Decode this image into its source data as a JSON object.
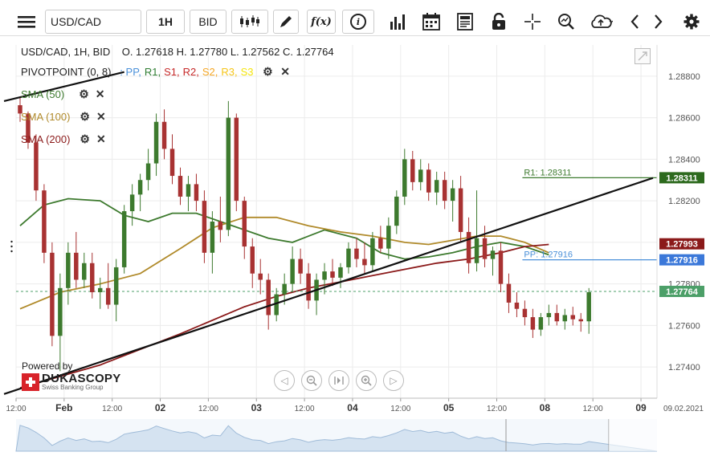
{
  "toolbar": {
    "instrument": "USD/CAD",
    "timeframe": "1H",
    "side": "BID",
    "fx_label": "f(x)",
    "info_label": "i"
  },
  "header": {
    "ohlc_title": "USD/CAD, 1H, BID",
    "open": "O. 1.27618",
    "high": "H. 1.27780",
    "low": "L. 1.27562",
    "close": "C. 1.27764"
  },
  "legend": {
    "pivot_name": "PIVOTPOINT (0, 8)",
    "pivot_sep": ":",
    "pivot_items": [
      {
        "label": "PP,",
        "color": "#4a90d9"
      },
      {
        "label": "R1,",
        "color": "#2e7d32"
      },
      {
        "label": "S1,",
        "color": "#c62828"
      },
      {
        "label": "R2,",
        "color": "#c62828"
      },
      {
        "label": "S2,",
        "color": "#f5a623"
      },
      {
        "label": "R3,",
        "color": "#f5c518"
      },
      {
        "label": "S3",
        "color": "#f5e50a"
      }
    ],
    "sma": [
      {
        "label": "SMA (50)",
        "color": "#3d7a2e"
      },
      {
        "label": "SMA (100)",
        "color": "#b08a2a"
      },
      {
        "label": "SMA (200)",
        "color": "#8b1a1a"
      }
    ]
  },
  "branding": {
    "powered_by": "Powered by",
    "name": "DUKASCOPY",
    "tagline": "Swiss Banking Group"
  },
  "chart_data": {
    "type": "candlestick",
    "instrument": "USD/CAD",
    "timeframe": "1H",
    "ylim": [
      1.2725,
      1.2895
    ],
    "y_ticks": [
      1.274,
      1.276,
      1.278,
      1.28,
      1.282,
      1.284,
      1.286,
      1.288
    ],
    "y_tick_labels": [
      "1.27400",
      "1.27600",
      "1.27800",
      "1.28000",
      "1.28200",
      "1.28400",
      "1.28600",
      "1.28800"
    ],
    "x_ticks": [
      {
        "label": "12:00",
        "i": 0,
        "bold": false
      },
      {
        "label": "Feb",
        "i": 6,
        "bold": true
      },
      {
        "label": "12:00",
        "i": 12,
        "bold": false
      },
      {
        "label": "02",
        "i": 18,
        "bold": true
      },
      {
        "label": "12:00",
        "i": 24,
        "bold": false
      },
      {
        "label": "03",
        "i": 30,
        "bold": true
      },
      {
        "label": "12:00",
        "i": 36,
        "bold": false
      },
      {
        "label": "04",
        "i": 42,
        "bold": true
      },
      {
        "label": "12:00",
        "i": 48,
        "bold": false
      },
      {
        "label": "05",
        "i": 54,
        "bold": true
      },
      {
        "label": "12:00",
        "i": 60,
        "bold": false
      },
      {
        "label": "08",
        "i": 66,
        "bold": true
      },
      {
        "label": "12:00",
        "i": 72,
        "bold": false
      },
      {
        "label": "09",
        "i": 78,
        "bold": true
      }
    ],
    "x_end_label": "09.02.2021",
    "candles": [
      [
        1.2866,
        1.287,
        1.2858,
        1.2862
      ],
      [
        1.2862,
        1.2863,
        1.2845,
        1.2848
      ],
      [
        1.2848,
        1.2852,
        1.282,
        1.2825
      ],
      [
        1.2825,
        1.2828,
        1.279,
        1.2795
      ],
      [
        1.2795,
        1.28,
        1.275,
        1.2755
      ],
      [
        1.2755,
        1.2785,
        1.2738,
        1.2778
      ],
      [
        1.2778,
        1.28,
        1.277,
        1.2795
      ],
      [
        1.2795,
        1.2805,
        1.2778,
        1.2782
      ],
      [
        1.2782,
        1.2795,
        1.2778,
        1.279
      ],
      [
        1.279,
        1.2795,
        1.2773,
        1.2776
      ],
      [
        1.2776,
        1.2783,
        1.2768,
        1.2778
      ],
      [
        1.2778,
        1.279,
        1.2768,
        1.277
      ],
      [
        1.277,
        1.2792,
        1.2762,
        1.2788
      ],
      [
        1.2788,
        1.2818,
        1.2785,
        1.2815
      ],
      [
        1.2815,
        1.2828,
        1.2808,
        1.2823
      ],
      [
        1.2823,
        1.2833,
        1.2815,
        1.283
      ],
      [
        1.283,
        1.2845,
        1.2825,
        1.2838
      ],
      [
        1.2838,
        1.2862,
        1.2832,
        1.2858
      ],
      [
        1.2858,
        1.2864,
        1.284,
        1.2845
      ],
      [
        1.2845,
        1.2852,
        1.2828,
        1.2832
      ],
      [
        1.2832,
        1.2836,
        1.2818,
        1.2822
      ],
      [
        1.2822,
        1.2832,
        1.2815,
        1.2828
      ],
      [
        1.2828,
        1.2833,
        1.2815,
        1.282
      ],
      [
        1.282,
        1.2825,
        1.279,
        1.2795
      ],
      [
        1.2795,
        1.2815,
        1.2785,
        1.281
      ],
      [
        1.281,
        1.2822,
        1.28,
        1.2806
      ],
      [
        1.2806,
        1.2868,
        1.2803,
        1.286
      ],
      [
        1.286,
        1.2862,
        1.2815,
        1.282
      ],
      [
        1.282,
        1.2822,
        1.2792,
        1.2798
      ],
      [
        1.2798,
        1.2802,
        1.2778,
        1.2785
      ],
      [
        1.2785,
        1.2792,
        1.2775,
        1.2782
      ],
      [
        1.2782,
        1.2785,
        1.2758,
        1.2765
      ],
      [
        1.2765,
        1.2778,
        1.2762,
        1.2775
      ],
      [
        1.2775,
        1.2785,
        1.277,
        1.278
      ],
      [
        1.278,
        1.2798,
        1.2776,
        1.2792
      ],
      [
        1.2792,
        1.2797,
        1.278,
        1.2785
      ],
      [
        1.2785,
        1.279,
        1.2768,
        1.2772
      ],
      [
        1.2772,
        1.2785,
        1.2765,
        1.2782
      ],
      [
        1.2782,
        1.279,
        1.2775,
        1.2786
      ],
      [
        1.2786,
        1.2792,
        1.2779,
        1.2783
      ],
      [
        1.2783,
        1.279,
        1.2778,
        1.2788
      ],
      [
        1.2788,
        1.28,
        1.2785,
        1.2797
      ],
      [
        1.2797,
        1.2802,
        1.2788,
        1.2792
      ],
      [
        1.2792,
        1.28,
        1.2785,
        1.2789
      ],
      [
        1.2789,
        1.2805,
        1.2786,
        1.2802
      ],
      [
        1.2802,
        1.2808,
        1.2795,
        1.2797
      ],
      [
        1.2797,
        1.2812,
        1.2792,
        1.2808
      ],
      [
        1.2808,
        1.2825,
        1.2804,
        1.2822
      ],
      [
        1.2822,
        1.2845,
        1.2818,
        1.284
      ],
      [
        1.284,
        1.2844,
        1.2825,
        1.2829
      ],
      [
        1.2829,
        1.284,
        1.2825,
        1.2835
      ],
      [
        1.2835,
        1.2838,
        1.282,
        1.2824
      ],
      [
        1.2824,
        1.2834,
        1.2818,
        1.283
      ],
      [
        1.283,
        1.2834,
        1.2816,
        1.282
      ],
      [
        1.282,
        1.283,
        1.281,
        1.2826
      ],
      [
        1.2826,
        1.2832,
        1.28,
        1.2805
      ],
      [
        1.2805,
        1.2812,
        1.2785,
        1.279
      ],
      [
        1.279,
        1.2825,
        1.2786,
        1.2802
      ],
      [
        1.2802,
        1.2808,
        1.2788,
        1.2792
      ],
      [
        1.2792,
        1.2798,
        1.2784,
        1.2796
      ],
      [
        1.2796,
        1.28,
        1.2776,
        1.278
      ],
      [
        1.278,
        1.2785,
        1.2766,
        1.2771
      ],
      [
        1.2771,
        1.2776,
        1.2764,
        1.2768
      ],
      [
        1.2768,
        1.2772,
        1.276,
        1.2764
      ],
      [
        1.2764,
        1.2768,
        1.2754,
        1.2758
      ],
      [
        1.2758,
        1.2766,
        1.2755,
        1.2764
      ],
      [
        1.2764,
        1.277,
        1.276,
        1.2766
      ],
      [
        1.2766,
        1.277,
        1.276,
        1.2762
      ],
      [
        1.2762,
        1.2768,
        1.2758,
        1.2765
      ],
      [
        1.2765,
        1.2769,
        1.276,
        1.2763
      ],
      [
        1.2763,
        1.2766,
        1.2757,
        1.2762
      ],
      [
        1.2762,
        1.2778,
        1.2756,
        1.2776
      ]
    ],
    "series": [
      {
        "name": "SMA (50)",
        "color": "#3d7a2e",
        "points": [
          [
            0,
            1.2808
          ],
          [
            3,
            1.2818
          ],
          [
            6,
            1.2821
          ],
          [
            10,
            1.282
          ],
          [
            13,
            1.2813
          ],
          [
            16,
            1.281
          ],
          [
            19,
            1.2814
          ],
          [
            22,
            1.2814
          ],
          [
            25,
            1.281
          ],
          [
            28,
            1.2806
          ],
          [
            31,
            1.2802
          ],
          [
            34,
            1.28
          ],
          [
            38,
            1.2806
          ],
          [
            42,
            1.2802
          ],
          [
            45,
            1.2795
          ],
          [
            48,
            1.2792
          ],
          [
            51,
            1.2793
          ],
          [
            54,
            1.2795
          ],
          [
            57,
            1.2798
          ],
          [
            60,
            1.28
          ],
          [
            63,
            1.2798
          ],
          [
            66,
            1.2794
          ]
        ]
      },
      {
        "name": "SMA (100)",
        "color": "#b08a2a",
        "points": [
          [
            0,
            1.2768
          ],
          [
            5,
            1.2776
          ],
          [
            10,
            1.278
          ],
          [
            15,
            1.2785
          ],
          [
            20,
            1.2797
          ],
          [
            24,
            1.2807
          ],
          [
            28,
            1.2812
          ],
          [
            32,
            1.2812
          ],
          [
            36,
            1.2808
          ],
          [
            40,
            1.2805
          ],
          [
            44,
            1.2803
          ],
          [
            48,
            1.28
          ],
          [
            51,
            1.2799
          ],
          [
            54,
            1.2801
          ],
          [
            57,
            1.2803
          ],
          [
            60,
            1.2803
          ],
          [
            63,
            1.28
          ],
          [
            66,
            1.2795
          ]
        ]
      },
      {
        "name": "SMA (200)",
        "color": "#8b1a1a",
        "points": [
          [
            0,
            1.273
          ],
          [
            10,
            1.2741
          ],
          [
            20,
            1.2756
          ],
          [
            28,
            1.2769
          ],
          [
            32,
            1.2774
          ],
          [
            36,
            1.2778
          ],
          [
            40,
            1.2781
          ],
          [
            44,
            1.2784
          ],
          [
            48,
            1.2787
          ],
          [
            52,
            1.279
          ],
          [
            56,
            1.2792
          ],
          [
            60,
            1.2795
          ],
          [
            63,
            1.2798
          ],
          [
            66,
            1.2799
          ]
        ]
      }
    ],
    "trendlines": [
      {
        "from": [
          -2,
          1.2727
        ],
        "to": [
          79,
          1.2831
        ]
      },
      {
        "from": [
          -2,
          1.2868
        ],
        "to": [
          13,
          1.2882
        ]
      }
    ],
    "pivot_levels": [
      {
        "name": "R1",
        "label": "R1: 1.28311",
        "value": 1.28311,
        "color": "#3d7a2e"
      },
      {
        "name": "PP",
        "label": "PP: 1.27916",
        "value": 1.27916,
        "color": "#4a90d9"
      }
    ],
    "price_badges": [
      {
        "value": 1.28311,
        "label": "1.28311",
        "color": "#2d6a1e"
      },
      {
        "value": 1.27993,
        "label": "1.27993",
        "color": "#8b1a1a"
      },
      {
        "value": 1.27916,
        "label": "1.27916",
        "color": "#3b78d9"
      },
      {
        "value": 1.27764,
        "label": "1.27764",
        "color": "#4c9f68"
      }
    ],
    "current_price": 1.27764,
    "colors": {
      "up": "#3d7a2e",
      "down": "#a83232",
      "grid": "#ececec"
    }
  }
}
